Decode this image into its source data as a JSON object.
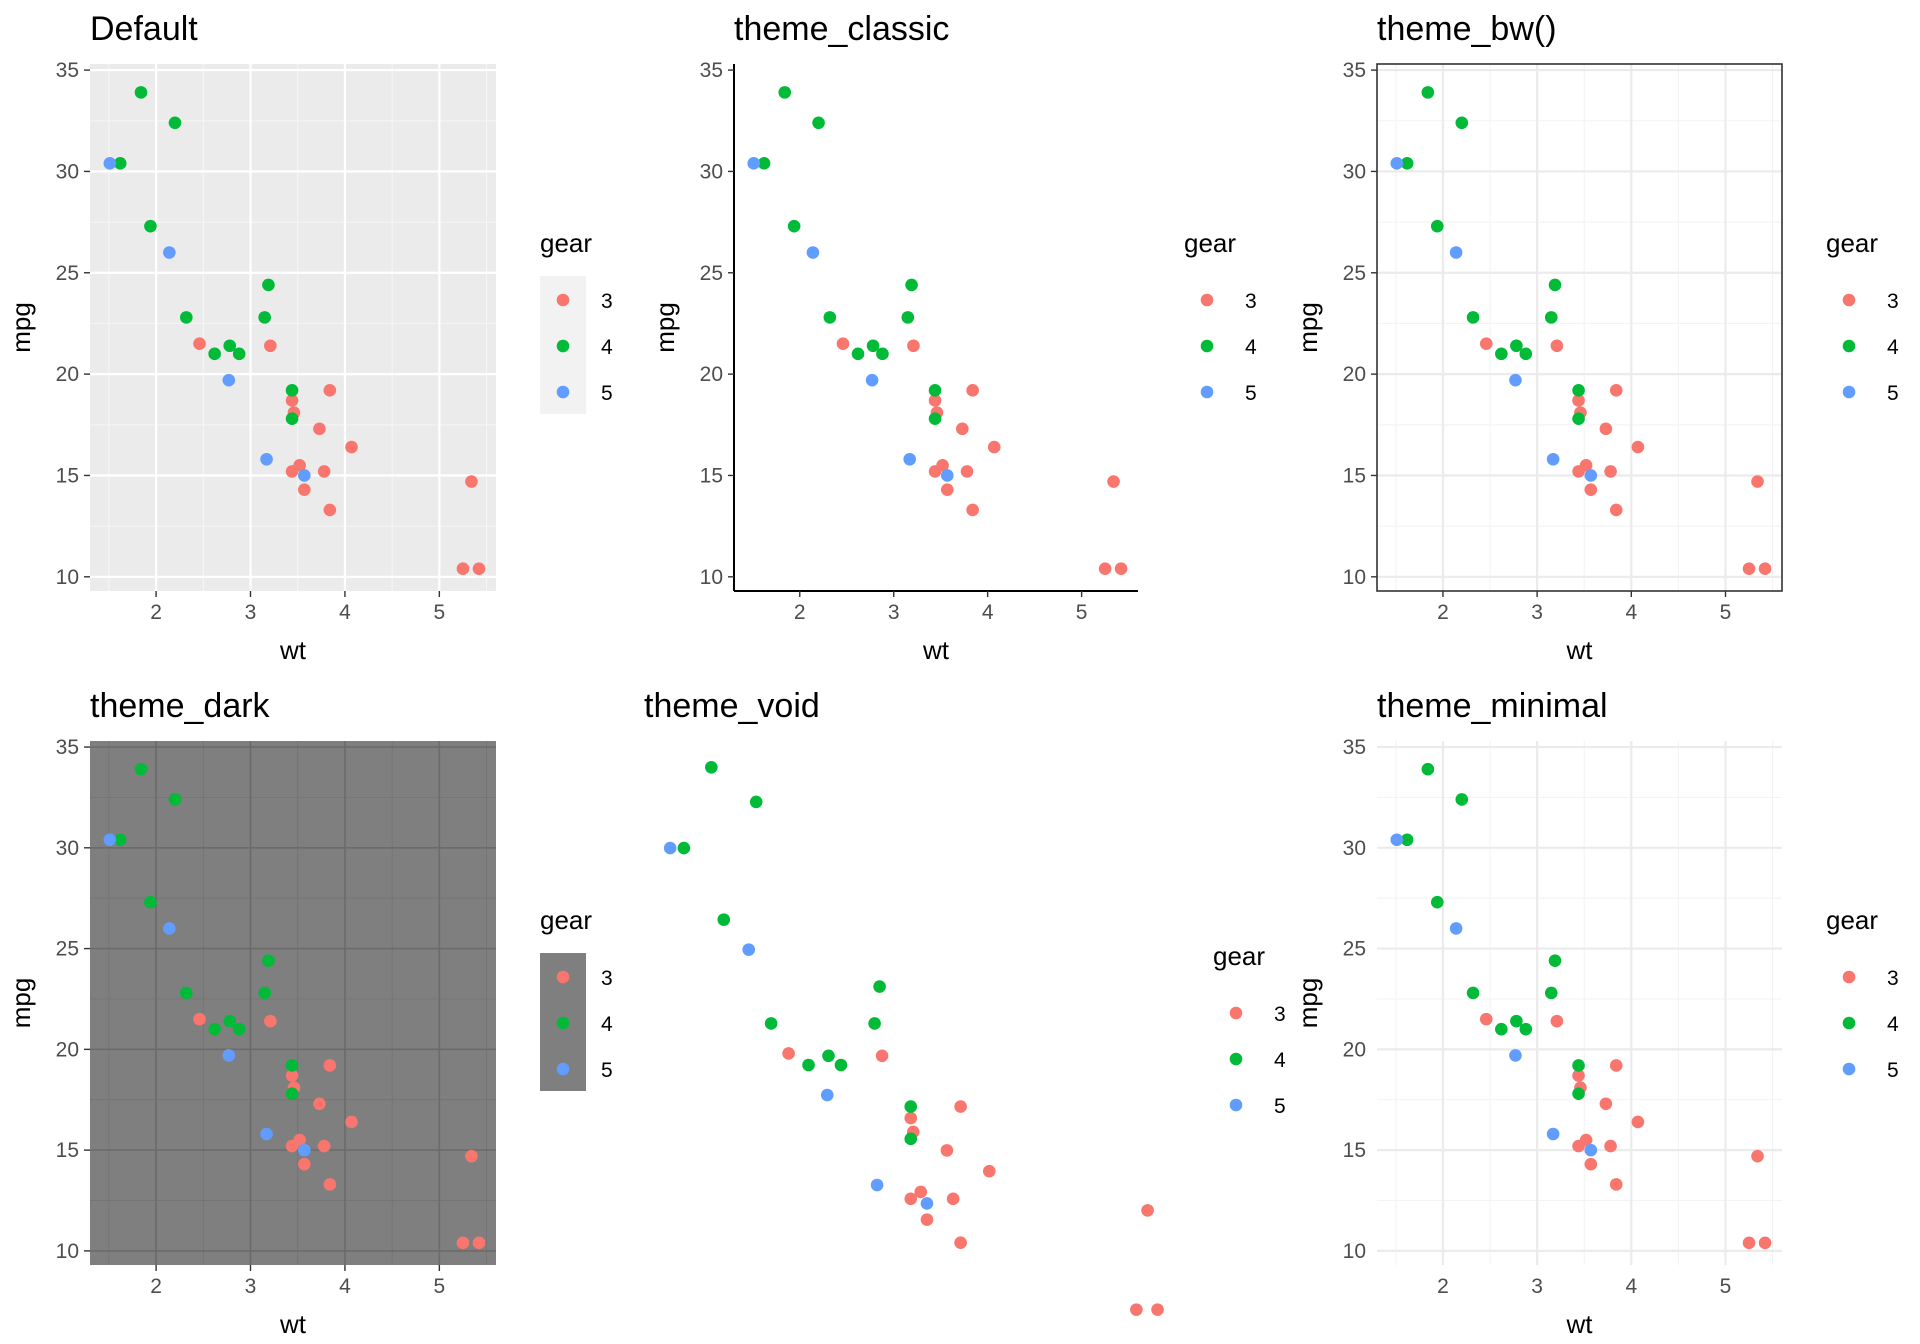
{
  "colors": {
    "gear_3": "#F8766D",
    "gear_4": "#00BA38",
    "gear_5": "#619CFF"
  },
  "chart_data": [
    {
      "type": "scatter",
      "title": "Default",
      "theme": "grey",
      "xlabel": "wt",
      "ylabel": "mpg",
      "xlim": [
        1.3,
        5.6
      ],
      "ylim": [
        9.3,
        35.3
      ],
      "xticks": [
        2,
        3,
        4,
        5
      ],
      "yticks": [
        10,
        15,
        20,
        25,
        30,
        35
      ],
      "legend": {
        "title": "gear",
        "labels": [
          "3",
          "4",
          "5"
        ],
        "position": "right"
      },
      "series": [
        {
          "name": "3",
          "points": [
            [
              2.46,
              21.5
            ],
            [
              3.21,
              21.4
            ],
            [
              3.44,
              18.7
            ],
            [
              3.46,
              18.1
            ],
            [
              3.57,
              14.3
            ],
            [
              3.78,
              15.2
            ],
            [
              3.73,
              17.3
            ],
            [
              4.07,
              16.4
            ],
            [
              3.84,
              19.2
            ],
            [
              3.44,
              15.2
            ],
            [
              3.52,
              15.5
            ],
            [
              3.84,
              13.3
            ],
            [
              5.25,
              10.4
            ],
            [
              5.42,
              10.4
            ],
            [
              5.34,
              14.7
            ]
          ]
        },
        {
          "name": "4",
          "points": [
            [
              2.62,
              21.0
            ],
            [
              2.88,
              21.0
            ],
            [
              2.32,
              22.8
            ],
            [
              3.19,
              24.4
            ],
            [
              3.15,
              22.8
            ],
            [
              3.44,
              19.2
            ],
            [
              3.44,
              17.8
            ],
            [
              2.2,
              32.4
            ],
            [
              1.62,
              30.4
            ],
            [
              1.84,
              33.9
            ],
            [
              1.94,
              27.3
            ],
            [
              2.78,
              21.4
            ]
          ]
        },
        {
          "name": "5",
          "points": [
            [
              2.14,
              26.0
            ],
            [
              1.51,
              30.4
            ],
            [
              3.17,
              15.8
            ],
            [
              2.77,
              19.7
            ],
            [
              3.57,
              15.0
            ]
          ]
        }
      ]
    },
    {
      "type": "scatter",
      "title": "theme_classic",
      "theme": "classic",
      "xlabel": "wt",
      "ylabel": "mpg",
      "xlim": [
        1.3,
        5.6
      ],
      "ylim": [
        9.3,
        35.3
      ],
      "xticks": [
        2,
        3,
        4,
        5
      ],
      "yticks": [
        10,
        15,
        20,
        25,
        30,
        35
      ],
      "legend": {
        "title": "gear",
        "labels": [
          "3",
          "4",
          "5"
        ],
        "position": "right"
      },
      "series": [
        {
          "name": "3",
          "points": [
            [
              2.46,
              21.5
            ],
            [
              3.21,
              21.4
            ],
            [
              3.44,
              18.7
            ],
            [
              3.46,
              18.1
            ],
            [
              3.57,
              14.3
            ],
            [
              3.78,
              15.2
            ],
            [
              3.73,
              17.3
            ],
            [
              4.07,
              16.4
            ],
            [
              3.84,
              19.2
            ],
            [
              3.44,
              15.2
            ],
            [
              3.52,
              15.5
            ],
            [
              3.84,
              13.3
            ],
            [
              5.25,
              10.4
            ],
            [
              5.42,
              10.4
            ],
            [
              5.34,
              14.7
            ]
          ]
        },
        {
          "name": "4",
          "points": [
            [
              2.62,
              21.0
            ],
            [
              2.88,
              21.0
            ],
            [
              2.32,
              22.8
            ],
            [
              3.19,
              24.4
            ],
            [
              3.15,
              22.8
            ],
            [
              3.44,
              19.2
            ],
            [
              3.44,
              17.8
            ],
            [
              2.2,
              32.4
            ],
            [
              1.62,
              30.4
            ],
            [
              1.84,
              33.9
            ],
            [
              1.94,
              27.3
            ],
            [
              2.78,
              21.4
            ]
          ]
        },
        {
          "name": "5",
          "points": [
            [
              2.14,
              26.0
            ],
            [
              1.51,
              30.4
            ],
            [
              3.17,
              15.8
            ],
            [
              2.77,
              19.7
            ],
            [
              3.57,
              15.0
            ]
          ]
        }
      ]
    },
    {
      "type": "scatter",
      "title": "theme_bw()",
      "theme": "bw",
      "xlabel": "wt",
      "ylabel": "mpg",
      "xlim": [
        1.3,
        5.6
      ],
      "ylim": [
        9.3,
        35.3
      ],
      "xticks": [
        2,
        3,
        4,
        5
      ],
      "yticks": [
        10,
        15,
        20,
        25,
        30,
        35
      ],
      "legend": {
        "title": "gear",
        "labels": [
          "3",
          "4",
          "5"
        ],
        "position": "right"
      },
      "series": [
        {
          "name": "3",
          "points": [
            [
              2.46,
              21.5
            ],
            [
              3.21,
              21.4
            ],
            [
              3.44,
              18.7
            ],
            [
              3.46,
              18.1
            ],
            [
              3.57,
              14.3
            ],
            [
              3.78,
              15.2
            ],
            [
              3.73,
              17.3
            ],
            [
              4.07,
              16.4
            ],
            [
              3.84,
              19.2
            ],
            [
              3.44,
              15.2
            ],
            [
              3.52,
              15.5
            ],
            [
              3.84,
              13.3
            ],
            [
              5.25,
              10.4
            ],
            [
              5.42,
              10.4
            ],
            [
              5.34,
              14.7
            ]
          ]
        },
        {
          "name": "4",
          "points": [
            [
              2.62,
              21.0
            ],
            [
              2.88,
              21.0
            ],
            [
              2.32,
              22.8
            ],
            [
              3.19,
              24.4
            ],
            [
              3.15,
              22.8
            ],
            [
              3.44,
              19.2
            ],
            [
              3.44,
              17.8
            ],
            [
              2.2,
              32.4
            ],
            [
              1.62,
              30.4
            ],
            [
              1.84,
              33.9
            ],
            [
              1.94,
              27.3
            ],
            [
              2.78,
              21.4
            ]
          ]
        },
        {
          "name": "5",
          "points": [
            [
              2.14,
              26.0
            ],
            [
              1.51,
              30.4
            ],
            [
              3.17,
              15.8
            ],
            [
              2.77,
              19.7
            ],
            [
              3.57,
              15.0
            ]
          ]
        }
      ]
    },
    {
      "type": "scatter",
      "title": "theme_dark",
      "theme": "dark",
      "xlabel": "wt",
      "ylabel": "mpg",
      "xlim": [
        1.3,
        5.6
      ],
      "ylim": [
        9.3,
        35.3
      ],
      "xticks": [
        2,
        3,
        4,
        5
      ],
      "yticks": [
        10,
        15,
        20,
        25,
        30,
        35
      ],
      "legend": {
        "title": "gear",
        "labels": [
          "3",
          "4",
          "5"
        ],
        "position": "right"
      },
      "series": [
        {
          "name": "3",
          "points": [
            [
              2.46,
              21.5
            ],
            [
              3.21,
              21.4
            ],
            [
              3.44,
              18.7
            ],
            [
              3.46,
              18.1
            ],
            [
              3.57,
              14.3
            ],
            [
              3.78,
              15.2
            ],
            [
              3.73,
              17.3
            ],
            [
              4.07,
              16.4
            ],
            [
              3.84,
              19.2
            ],
            [
              3.44,
              15.2
            ],
            [
              3.52,
              15.5
            ],
            [
              3.84,
              13.3
            ],
            [
              5.25,
              10.4
            ],
            [
              5.42,
              10.4
            ],
            [
              5.34,
              14.7
            ]
          ]
        },
        {
          "name": "4",
          "points": [
            [
              2.62,
              21.0
            ],
            [
              2.88,
              21.0
            ],
            [
              2.32,
              22.8
            ],
            [
              3.19,
              24.4
            ],
            [
              3.15,
              22.8
            ],
            [
              3.44,
              19.2
            ],
            [
              3.44,
              17.8
            ],
            [
              2.2,
              32.4
            ],
            [
              1.62,
              30.4
            ],
            [
              1.84,
              33.9
            ],
            [
              1.94,
              27.3
            ],
            [
              2.78,
              21.4
            ]
          ]
        },
        {
          "name": "5",
          "points": [
            [
              2.14,
              26.0
            ],
            [
              1.51,
              30.4
            ],
            [
              3.17,
              15.8
            ],
            [
              2.77,
              19.7
            ],
            [
              3.57,
              15.0
            ]
          ]
        }
      ]
    },
    {
      "type": "scatter",
      "title": "theme_void",
      "theme": "void",
      "xlabel": "",
      "ylabel": "",
      "xlim": [
        1.3,
        5.6
      ],
      "ylim": [
        9.3,
        35.3
      ],
      "xticks": [],
      "yticks": [],
      "legend": {
        "title": "gear",
        "labels": [
          "3",
          "4",
          "5"
        ],
        "position": "right"
      },
      "series": [
        {
          "name": "3",
          "points": [
            [
              2.46,
              21.5
            ],
            [
              3.21,
              21.4
            ],
            [
              3.44,
              18.7
            ],
            [
              3.46,
              18.1
            ],
            [
              3.57,
              14.3
            ],
            [
              3.78,
              15.2
            ],
            [
              3.73,
              17.3
            ],
            [
              4.07,
              16.4
            ],
            [
              3.84,
              19.2
            ],
            [
              3.44,
              15.2
            ],
            [
              3.52,
              15.5
            ],
            [
              3.84,
              13.3
            ],
            [
              5.25,
              10.4
            ],
            [
              5.42,
              10.4
            ],
            [
              5.34,
              14.7
            ]
          ]
        },
        {
          "name": "4",
          "points": [
            [
              2.62,
              21.0
            ],
            [
              2.88,
              21.0
            ],
            [
              2.32,
              22.8
            ],
            [
              3.19,
              24.4
            ],
            [
              3.15,
              22.8
            ],
            [
              3.44,
              19.2
            ],
            [
              3.44,
              17.8
            ],
            [
              2.2,
              32.4
            ],
            [
              1.62,
              30.4
            ],
            [
              1.84,
              33.9
            ],
            [
              1.94,
              27.3
            ],
            [
              2.78,
              21.4
            ]
          ]
        },
        {
          "name": "5",
          "points": [
            [
              2.14,
              26.0
            ],
            [
              1.51,
              30.4
            ],
            [
              3.17,
              15.8
            ],
            [
              2.77,
              19.7
            ],
            [
              3.57,
              15.0
            ]
          ]
        }
      ]
    },
    {
      "type": "scatter",
      "title": "theme_minimal",
      "theme": "minimal",
      "xlabel": "wt",
      "ylabel": "mpg",
      "xlim": [
        1.3,
        5.6
      ],
      "ylim": [
        9.3,
        35.3
      ],
      "xticks": [
        2,
        3,
        4,
        5
      ],
      "yticks": [
        10,
        15,
        20,
        25,
        30,
        35
      ],
      "legend": {
        "title": "gear",
        "labels": [
          "3",
          "4",
          "5"
        ],
        "position": "right"
      },
      "series": [
        {
          "name": "3",
          "points": [
            [
              2.46,
              21.5
            ],
            [
              3.21,
              21.4
            ],
            [
              3.44,
              18.7
            ],
            [
              3.46,
              18.1
            ],
            [
              3.57,
              14.3
            ],
            [
              3.78,
              15.2
            ],
            [
              3.73,
              17.3
            ],
            [
              4.07,
              16.4
            ],
            [
              3.84,
              19.2
            ],
            [
              3.44,
              15.2
            ],
            [
              3.52,
              15.5
            ],
            [
              3.84,
              13.3
            ],
            [
              5.25,
              10.4
            ],
            [
              5.42,
              10.4
            ],
            [
              5.34,
              14.7
            ]
          ]
        },
        {
          "name": "4",
          "points": [
            [
              2.62,
              21.0
            ],
            [
              2.88,
              21.0
            ],
            [
              2.32,
              22.8
            ],
            [
              3.19,
              24.4
            ],
            [
              3.15,
              22.8
            ],
            [
              3.44,
              19.2
            ],
            [
              3.44,
              17.8
            ],
            [
              2.2,
              32.4
            ],
            [
              1.62,
              30.4
            ],
            [
              1.84,
              33.9
            ],
            [
              1.94,
              27.3
            ],
            [
              2.78,
              21.4
            ]
          ]
        },
        {
          "name": "5",
          "points": [
            [
              2.14,
              26.0
            ],
            [
              1.51,
              30.4
            ],
            [
              3.17,
              15.8
            ],
            [
              2.77,
              19.7
            ],
            [
              3.57,
              15.0
            ]
          ]
        }
      ]
    }
  ]
}
